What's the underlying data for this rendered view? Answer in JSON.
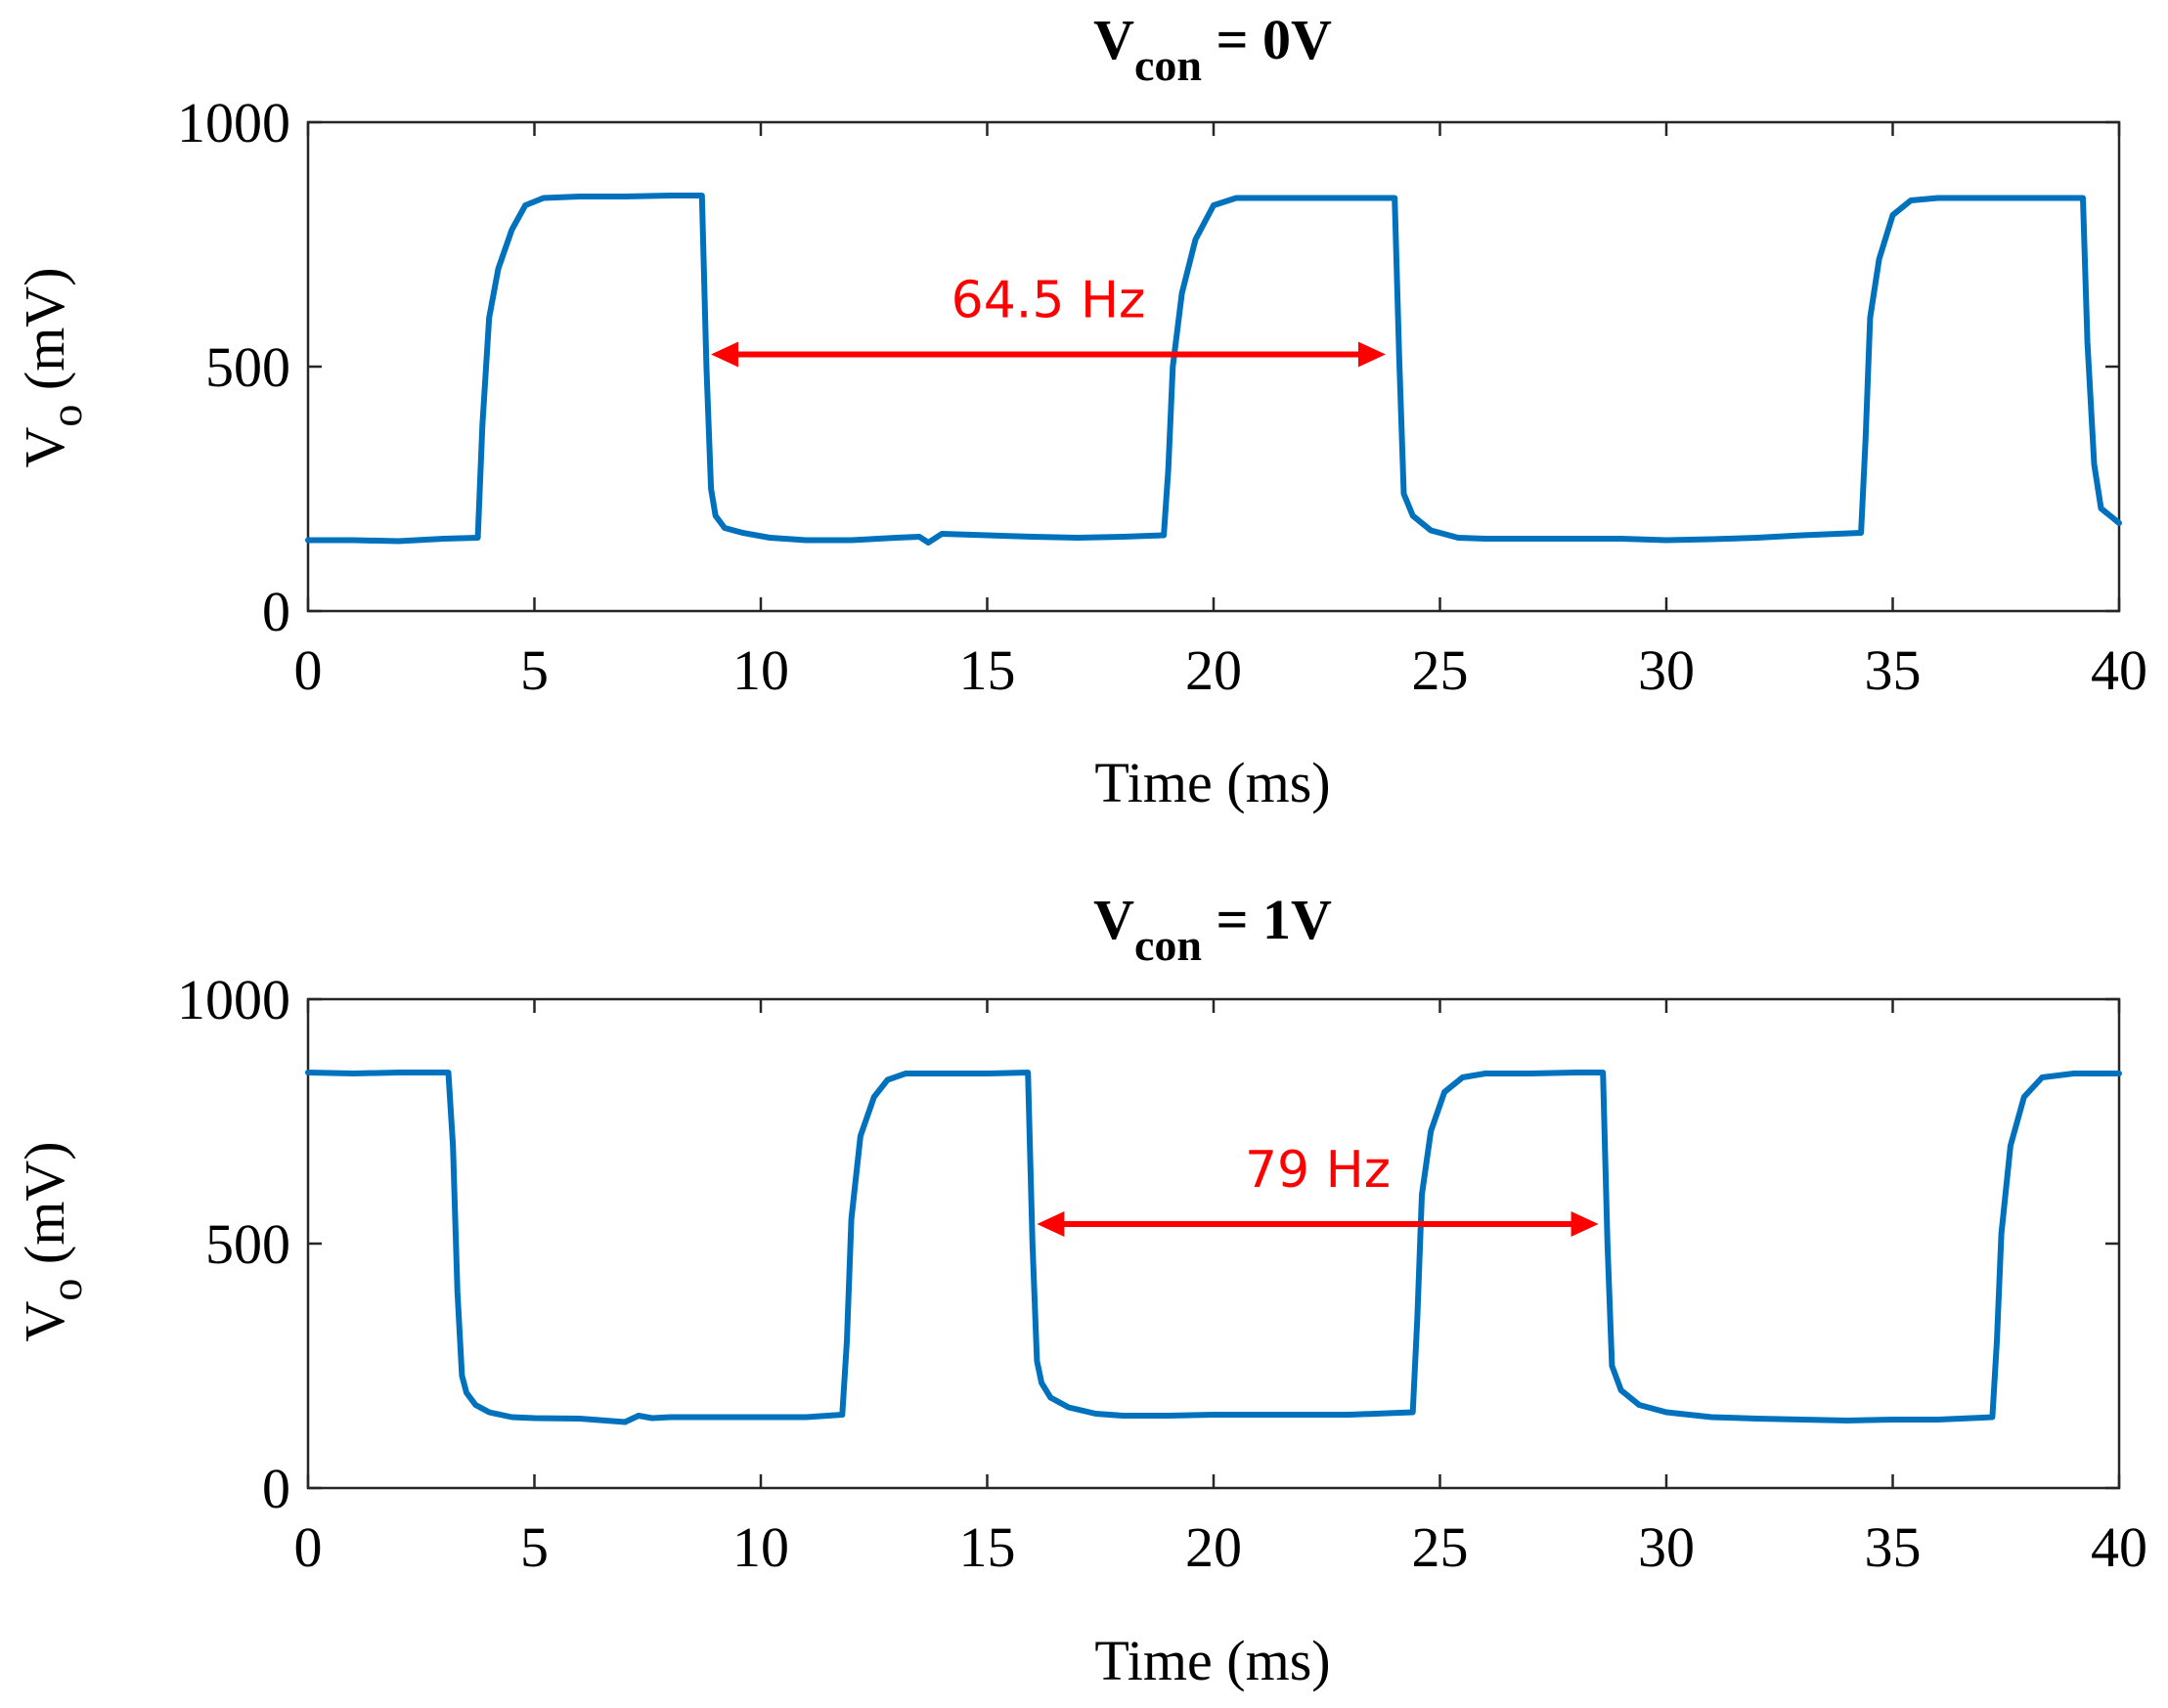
{
  "chart_data": [
    {
      "type": "line",
      "title_main": "V",
      "title_sub": "con",
      "title_rest": " = 0V",
      "xlabel": "Time (ms)",
      "ylabel_main": "V",
      "ylabel_sub": "o",
      "ylabel_rest": " (mV)",
      "xlim": [
        0,
        40
      ],
      "ylim": [
        0,
        1000
      ],
      "xticks": [
        "0",
        "5",
        "10",
        "15",
        "20",
        "25",
        "30",
        "35",
        "40"
      ],
      "yticks": [
        "0",
        "500",
        "1000"
      ],
      "grid": false,
      "line_color": "#0072BD",
      "annotation": {
        "label": "64.5 Hz",
        "x_start": 8.9,
        "x_end": 23.8,
        "y": 525,
        "color": "#ff0000"
      },
      "series": [
        {
          "name": "Vo",
          "x": [
            0,
            1,
            2,
            3,
            3.75,
            3.85,
            4.0,
            4.2,
            4.5,
            4.8,
            5.2,
            6,
            7,
            8,
            8.7,
            8.8,
            8.9,
            9.0,
            9.2,
            9.6,
            10.2,
            11,
            12,
            13,
            13.5,
            13.7,
            14,
            15,
            16,
            17,
            18,
            18.9,
            19.0,
            19.1,
            19.3,
            19.6,
            20.0,
            20.5,
            21,
            22,
            23,
            24.0,
            24.1,
            24.2,
            24.4,
            24.8,
            25.4,
            26,
            27,
            28,
            29,
            30,
            31,
            32,
            33,
            34.3,
            34.4,
            34.5,
            34.7,
            35.0,
            35.4,
            36,
            37,
            38,
            39.2,
            39.3,
            39.45,
            39.6,
            40
          ],
          "y": [
            145,
            145,
            143,
            148,
            150,
            380,
            600,
            700,
            780,
            830,
            845,
            848,
            848,
            850,
            850,
            500,
            250,
            195,
            170,
            160,
            150,
            145,
            145,
            150,
            152,
            140,
            158,
            155,
            152,
            150,
            152,
            155,
            290,
            500,
            650,
            760,
            830,
            845,
            845,
            845,
            845,
            845,
            520,
            240,
            195,
            165,
            150,
            148,
            148,
            148,
            148,
            145,
            147,
            150,
            155,
            160,
            350,
            600,
            720,
            810,
            840,
            845,
            845,
            845,
            845,
            550,
            300,
            210,
            180
          ]
        }
      ]
    },
    {
      "type": "line",
      "title_main": "V",
      "title_sub": "con",
      "title_rest": " = 1V",
      "xlabel": "Time (ms)",
      "ylabel_main": "V",
      "ylabel_sub": "o",
      "ylabel_rest": " (mV)",
      "xlim": [
        0,
        40
      ],
      "ylim": [
        0,
        1000
      ],
      "xticks": [
        "0",
        "5",
        "10",
        "15",
        "20",
        "25",
        "30",
        "35",
        "40"
      ],
      "yticks": [
        "0",
        "500",
        "1000"
      ],
      "grid": false,
      "line_color": "#0072BD",
      "annotation": {
        "label": "79 Hz",
        "x_start": 16.1,
        "x_end": 28.5,
        "y": 540,
        "color": "#ff0000"
      },
      "series": [
        {
          "name": "Vo",
          "x": [
            0,
            1,
            2,
            3.1,
            3.2,
            3.3,
            3.4,
            3.5,
            3.7,
            4.0,
            4.5,
            5,
            6,
            7,
            7.3,
            7.6,
            8,
            9,
            10,
            11,
            11.8,
            11.9,
            12.0,
            12.2,
            12.5,
            12.8,
            13.2,
            14,
            15,
            15.9,
            16.0,
            16.1,
            16.2,
            16.4,
            16.8,
            17.4,
            18,
            19,
            20,
            21,
            22,
            23,
            24.4,
            24.5,
            24.6,
            24.8,
            25.1,
            25.5,
            26,
            27,
            28,
            28.6,
            28.7,
            28.8,
            29.0,
            29.4,
            30,
            31,
            32,
            33,
            34,
            35,
            36,
            37.2,
            37.3,
            37.4,
            37.6,
            37.9,
            38.3,
            39,
            40
          ],
          "y": [
            850,
            848,
            850,
            850,
            700,
            400,
            230,
            195,
            170,
            155,
            145,
            143,
            142,
            135,
            148,
            143,
            145,
            145,
            145,
            145,
            150,
            300,
            550,
            720,
            800,
            835,
            848,
            848,
            848,
            850,
            500,
            260,
            215,
            185,
            165,
            152,
            148,
            148,
            150,
            150,
            150,
            150,
            155,
            350,
            600,
            730,
            810,
            840,
            848,
            848,
            850,
            850,
            500,
            250,
            200,
            170,
            155,
            145,
            142,
            140,
            138,
            140,
            140,
            145,
            300,
            520,
            700,
            800,
            840,
            848,
            848
          ]
        }
      ]
    }
  ]
}
